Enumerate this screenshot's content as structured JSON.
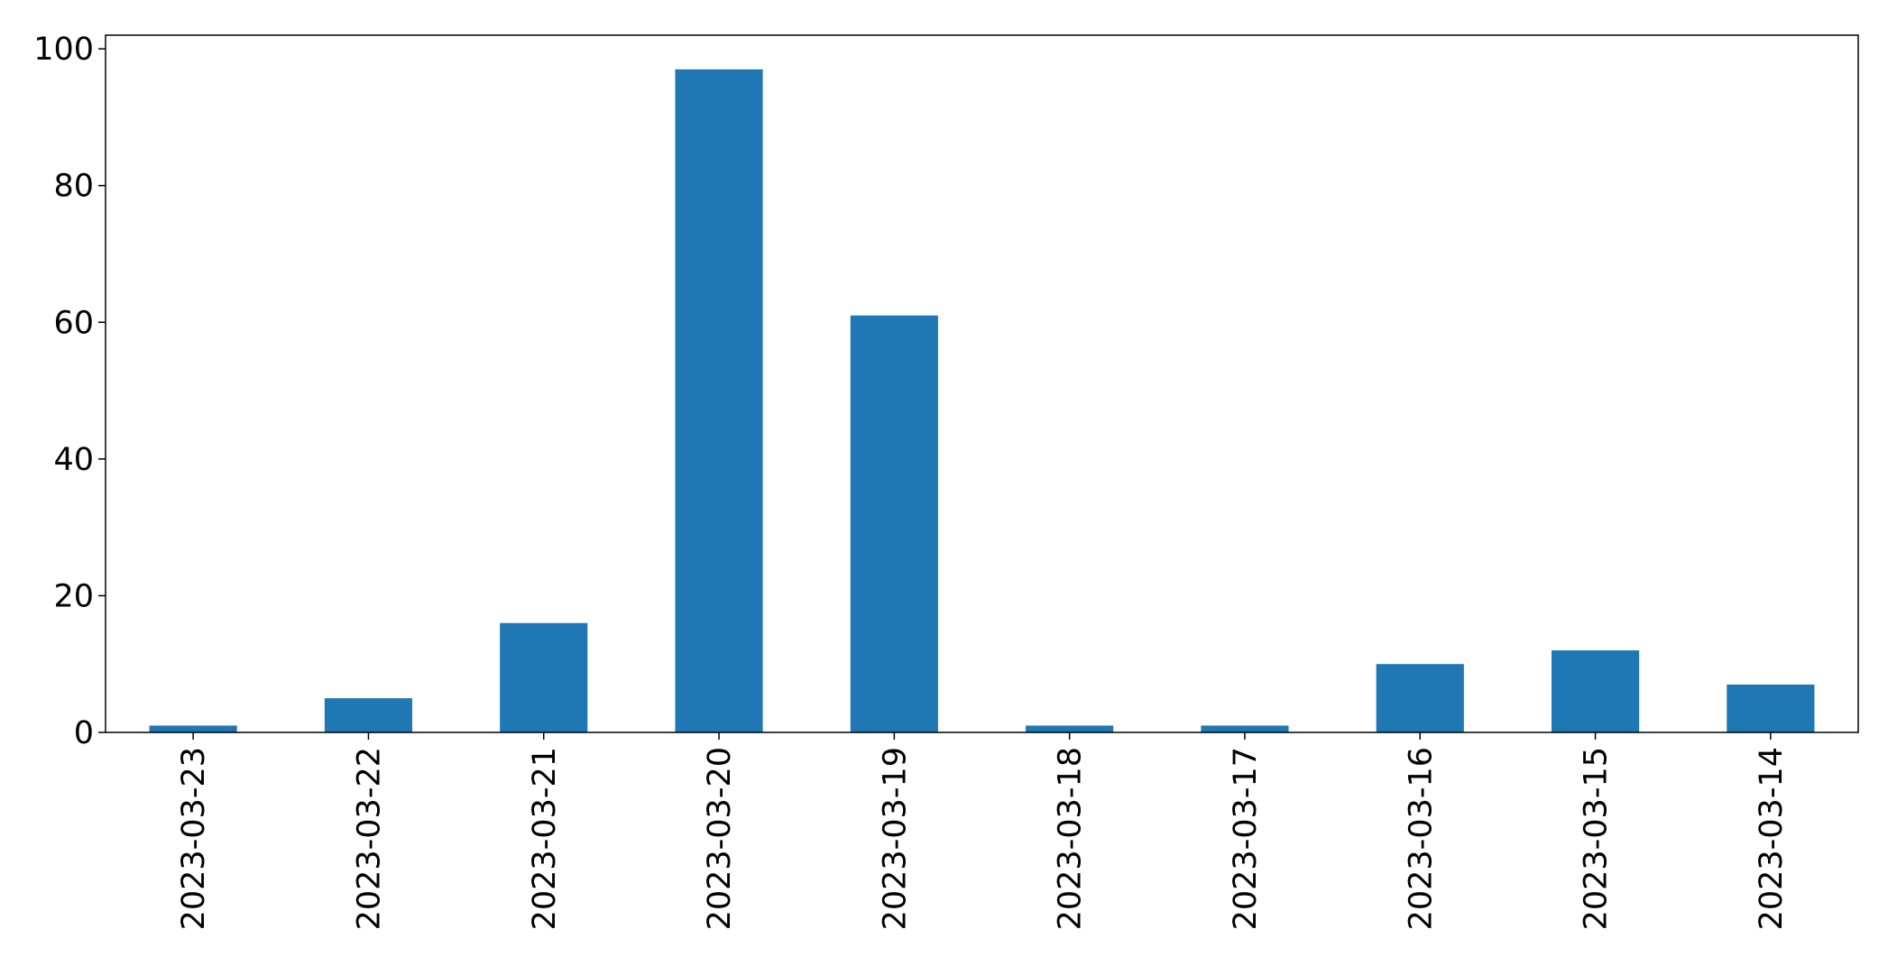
{
  "chart_data": {
    "type": "bar",
    "categories": [
      "2023-03-23",
      "2023-03-22",
      "2023-03-21",
      "2023-03-20",
      "2023-03-19",
      "2023-03-18",
      "2023-03-17",
      "2023-03-16",
      "2023-03-15",
      "2023-03-14"
    ],
    "values": [
      1,
      5,
      16,
      97,
      61,
      1,
      1,
      10,
      12,
      7
    ],
    "title": "",
    "xlabel": "",
    "ylabel": "",
    "ylim": [
      0,
      102
    ],
    "yticks": [
      0,
      20,
      40,
      60,
      80,
      100
    ],
    "grid": false,
    "legend": "none",
    "bar_color": "#1f77b4"
  }
}
